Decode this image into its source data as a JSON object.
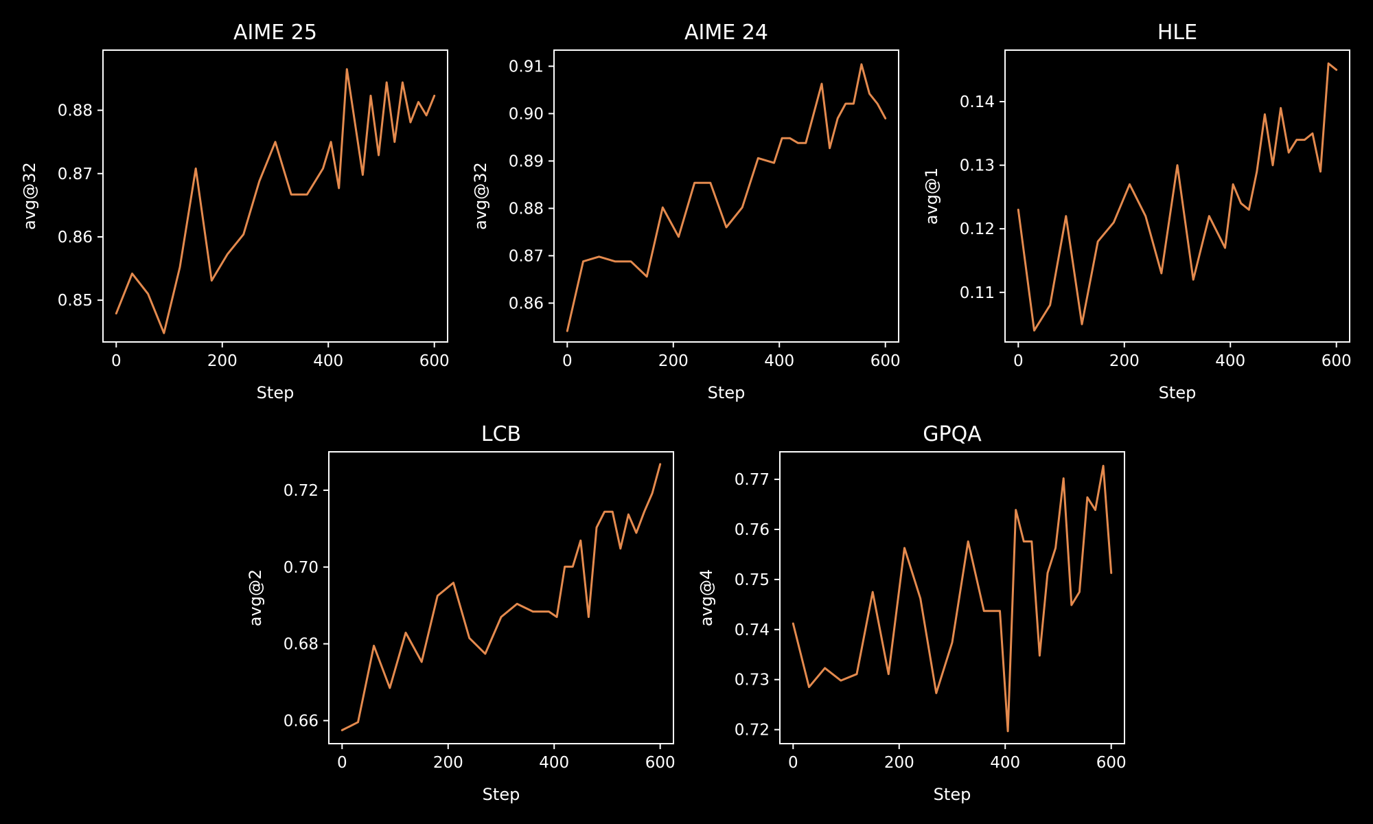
{
  "colors": {
    "background": "#000000",
    "line": "#E48A4E",
    "axis": "#ffffff"
  },
  "chart_data": [
    {
      "type": "line",
      "title": "AIME 25",
      "xlabel": "Step",
      "ylabel": "avg@32",
      "xlim": [
        -25,
        625
      ],
      "ylim": [
        0.8434,
        0.8895
      ],
      "xticks": [
        0,
        200,
        400,
        600
      ],
      "xtick_labels": [
        "0",
        "200",
        "400",
        "600"
      ],
      "yticks": [
        0.85,
        0.86,
        0.87,
        0.88
      ],
      "ytick_labels": [
        "0.85",
        "0.86",
        "0.87",
        "0.88"
      ],
      "x": [
        0,
        30,
        60,
        90,
        120,
        150,
        180,
        210,
        240,
        270,
        300,
        330,
        360,
        390,
        405,
        420,
        435,
        465,
        480,
        495,
        510,
        525,
        540,
        555,
        570,
        585,
        600
      ],
      "y": [
        0.8479,
        0.8542,
        0.851,
        0.8448,
        0.8552,
        0.8708,
        0.8531,
        0.8573,
        0.8604,
        0.8688,
        0.875,
        0.8667,
        0.8667,
        0.8708,
        0.875,
        0.8677,
        0.8865,
        0.8698,
        0.8823,
        0.8729,
        0.8844,
        0.875,
        0.8844,
        0.8781,
        0.8813,
        0.8792,
        0.8823
      ]
    },
    {
      "type": "line",
      "title": "AIME 24",
      "xlabel": "Step",
      "ylabel": "avg@32",
      "xlim": [
        -25,
        625
      ],
      "ylim": [
        0.8518,
        0.9134
      ],
      "xticks": [
        0,
        200,
        400,
        600
      ],
      "xtick_labels": [
        "0",
        "200",
        "400",
        "600"
      ],
      "yticks": [
        0.86,
        0.87,
        0.88,
        0.89,
        0.9,
        0.91
      ],
      "ytick_labels": [
        "0.86",
        "0.87",
        "0.88",
        "0.89",
        "0.90",
        "0.91"
      ],
      "x": [
        0,
        30,
        60,
        90,
        120,
        150,
        180,
        210,
        240,
        270,
        300,
        330,
        360,
        390,
        405,
        420,
        435,
        450,
        480,
        495,
        510,
        525,
        540,
        555,
        570,
        585,
        600
      ],
      "y": [
        0.8541,
        0.8688,
        0.8698,
        0.8688,
        0.8688,
        0.8656,
        0.8802,
        0.874,
        0.8854,
        0.8854,
        0.876,
        0.8802,
        0.8906,
        0.8896,
        0.8948,
        0.8948,
        0.8938,
        0.8938,
        0.9063,
        0.8927,
        0.899,
        0.9021,
        0.9021,
        0.9104,
        0.9042,
        0.9021,
        0.899
      ]
    },
    {
      "type": "line",
      "title": "HLE",
      "xlabel": "Step",
      "ylabel": "avg@1",
      "xlim": [
        -25,
        625
      ],
      "ylim": [
        0.1022,
        0.1481
      ],
      "xticks": [
        0,
        200,
        400,
        600
      ],
      "xtick_labels": [
        "0",
        "200",
        "400",
        "600"
      ],
      "yticks": [
        0.11,
        0.12,
        0.13,
        0.14
      ],
      "ytick_labels": [
        "0.11",
        "0.12",
        "0.13",
        "0.14"
      ],
      "x": [
        0,
        30,
        60,
        90,
        120,
        150,
        180,
        210,
        240,
        270,
        300,
        330,
        360,
        390,
        405,
        420,
        435,
        450,
        465,
        480,
        495,
        510,
        525,
        540,
        555,
        570,
        585,
        600
      ],
      "y": [
        0.123,
        0.104,
        0.108,
        0.122,
        0.105,
        0.118,
        0.121,
        0.127,
        0.122,
        0.113,
        0.13,
        0.112,
        0.122,
        0.117,
        0.127,
        0.124,
        0.123,
        0.129,
        0.138,
        0.13,
        0.139,
        0.132,
        0.134,
        0.134,
        0.135,
        0.129,
        0.146,
        0.145
      ]
    },
    {
      "type": "line",
      "title": "LCB",
      "xlabel": "Step",
      "ylabel": "avg@2",
      "xlim": [
        -25,
        625
      ],
      "ylim": [
        0.654,
        0.73
      ],
      "xticks": [
        0,
        200,
        400,
        600
      ],
      "xtick_labels": [
        "0",
        "200",
        "400",
        "600"
      ],
      "yticks": [
        0.66,
        0.68,
        0.7,
        0.72
      ],
      "ytick_labels": [
        "0.66",
        "0.68",
        "0.70",
        "0.72"
      ],
      "x": [
        0,
        30,
        60,
        90,
        120,
        150,
        180,
        210,
        240,
        270,
        300,
        330,
        360,
        390,
        405,
        420,
        435,
        450,
        465,
        480,
        495,
        510,
        525,
        540,
        555,
        570,
        585,
        600
      ],
      "y": [
        0.6575,
        0.6596,
        0.6795,
        0.6685,
        0.6829,
        0.6753,
        0.6925,
        0.6959,
        0.6815,
        0.6774,
        0.687,
        0.6904,
        0.6884,
        0.6884,
        0.687,
        0.7001,
        0.7001,
        0.7069,
        0.687,
        0.7103,
        0.7144,
        0.7144,
        0.7048,
        0.7137,
        0.7089,
        0.7144,
        0.7192,
        0.7268
      ]
    },
    {
      "type": "line",
      "title": "GPQA",
      "xlabel": "Step",
      "ylabel": "avg@4",
      "xlim": [
        -25,
        625
      ],
      "ylim": [
        0.7172,
        0.7755
      ],
      "xticks": [
        0,
        200,
        400,
        600
      ],
      "xtick_labels": [
        "0",
        "200",
        "400",
        "600"
      ],
      "yticks": [
        0.72,
        0.73,
        0.74,
        0.75,
        0.76,
        0.77
      ],
      "ytick_labels": [
        "0.72",
        "0.73",
        "0.74",
        "0.75",
        "0.76",
        "0.77"
      ],
      "x": [
        0,
        30,
        60,
        90,
        120,
        150,
        180,
        210,
        240,
        270,
        300,
        330,
        360,
        390,
        405,
        420,
        435,
        450,
        465,
        480,
        495,
        510,
        525,
        540,
        555,
        570,
        585,
        600
      ],
      "y": [
        0.7412,
        0.7285,
        0.7323,
        0.7298,
        0.7311,
        0.7475,
        0.7311,
        0.7563,
        0.7462,
        0.7273,
        0.7374,
        0.7576,
        0.7437,
        0.7437,
        0.7197,
        0.7639,
        0.7576,
        0.7576,
        0.7348,
        0.7513,
        0.7563,
        0.7702,
        0.7449,
        0.7475,
        0.7664,
        0.7639,
        0.7727,
        0.7513
      ]
    }
  ]
}
